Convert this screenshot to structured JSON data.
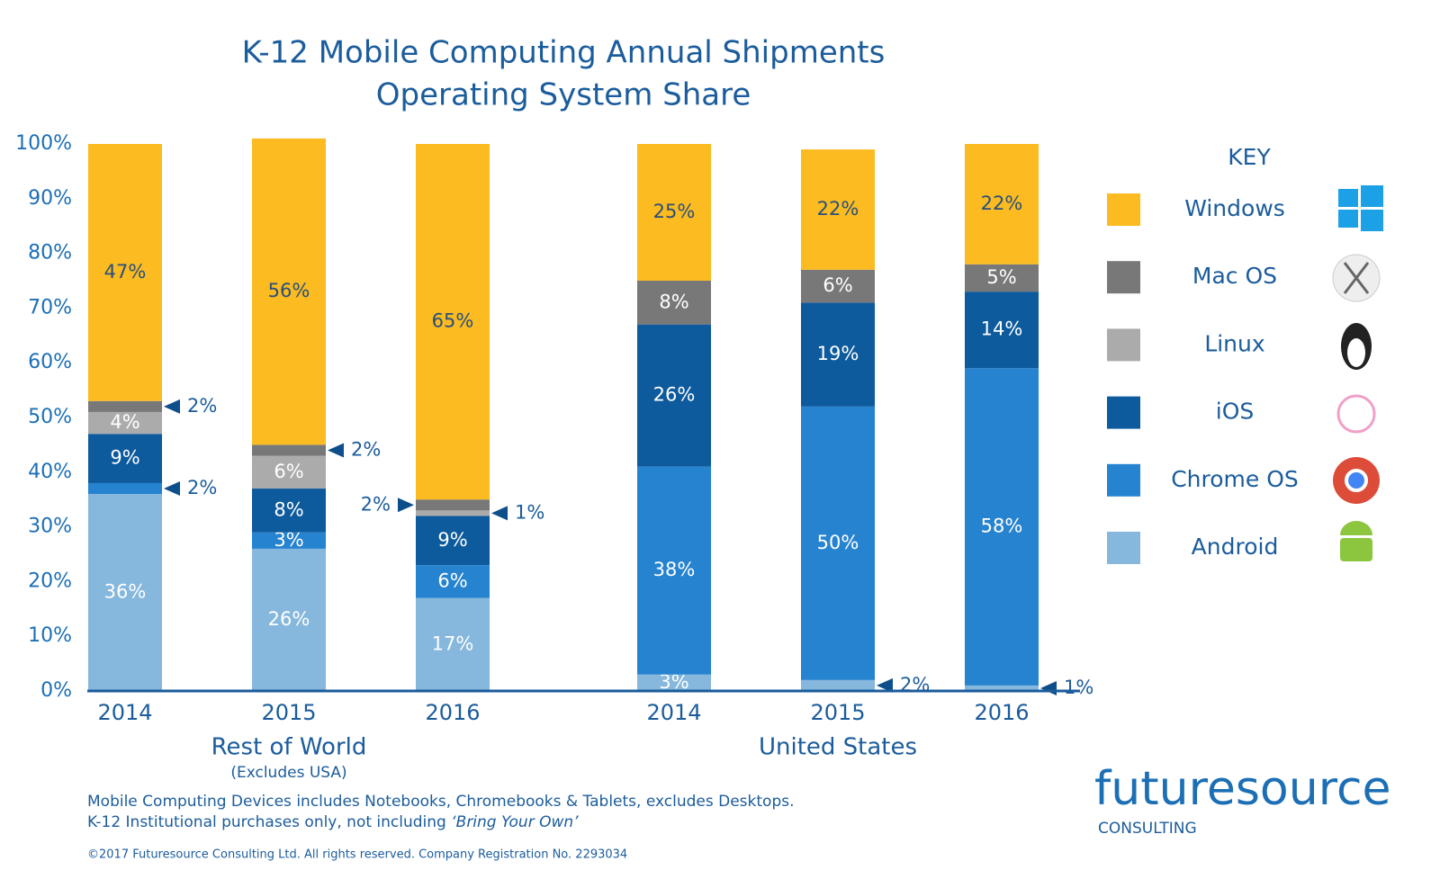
{
  "chart_data": {
    "type": "stacked_bar",
    "title": [
      "K-12 Mobile Computing Annual Shipments",
      "Operating System Share"
    ],
    "categories": [
      "2014",
      "2015",
      "2016",
      "2014",
      "2015",
      "2016"
    ],
    "groups": [
      {
        "name": "Rest of World",
        "subtitle": "(Excludes USA)"
      },
      {
        "name": "United States"
      }
    ],
    "series": [
      {
        "name": "Android",
        "color": "#86b7dc",
        "values": [
          36,
          26,
          17,
          3,
          2,
          1
        ],
        "value_labels": [
          "36%",
          "26%",
          "17%",
          "3%",
          "2%",
          "1%"
        ]
      },
      {
        "name": "Chrome OS",
        "color": "#2683d0",
        "values": [
          2,
          3,
          6,
          38,
          50,
          58
        ],
        "value_labels": [
          "2%",
          "3%",
          "6%",
          "38%",
          "50%",
          "58%"
        ]
      },
      {
        "name": "iOS",
        "color": "#0d5a9c",
        "values": [
          9,
          8,
          9,
          26,
          19,
          14
        ],
        "value_labels": [
          "9%",
          "8%",
          "9%",
          "26%",
          "19%",
          "14%"
        ]
      },
      {
        "name": "Linux",
        "color": "#ababab",
        "values": [
          4,
          6,
          1,
          null,
          null,
          null
        ],
        "value_labels": [
          "4%",
          "6%",
          "1%",
          null,
          null,
          null
        ]
      },
      {
        "name": "Mac OS",
        "color": "#787878",
        "values": [
          2,
          2,
          2,
          8,
          6,
          5
        ],
        "value_labels": [
          "2%",
          "2%",
          "2%",
          "8%",
          "6%",
          "5%"
        ]
      },
      {
        "name": "Windows",
        "color": "#fbbb21",
        "values": [
          47,
          56,
          65,
          25,
          22,
          22
        ],
        "value_labels": [
          "47%",
          "56%",
          "65%",
          "25%",
          "22%",
          "22%"
        ]
      }
    ],
    "ylim": [
      0,
      100
    ],
    "yticks": [
      {
        "value": 0,
        "label": "0%"
      },
      {
        "value": 10,
        "label": "10%"
      },
      {
        "value": 20,
        "label": "20%"
      },
      {
        "value": 30,
        "label": "30%"
      },
      {
        "value": 40,
        "label": "40%"
      },
      {
        "value": 50,
        "label": "50%"
      },
      {
        "value": 60,
        "label": "60%"
      },
      {
        "value": 70,
        "label": "70%"
      },
      {
        "value": 80,
        "label": "80%"
      },
      {
        "value": 90,
        "label": "90%"
      },
      {
        "value": 100,
        "label": "100%"
      }
    ],
    "legend_title": "KEY",
    "notes": [
      "Mobile Computing Devices includes Notebooks, Chromebooks & Tablets, excludes Desktops."
    ],
    "note2": {
      "text": "K-12 Institutional purchases only, not including ",
      "emphasis": "‘Bring Your Own’"
    },
    "copyright": "©2017 Futuresource Consulting Ltd. All rights reserved. Company Registration No. 2293034",
    "logo": {
      "name": "futuresource",
      "tagline": "CONSULTING"
    }
  }
}
